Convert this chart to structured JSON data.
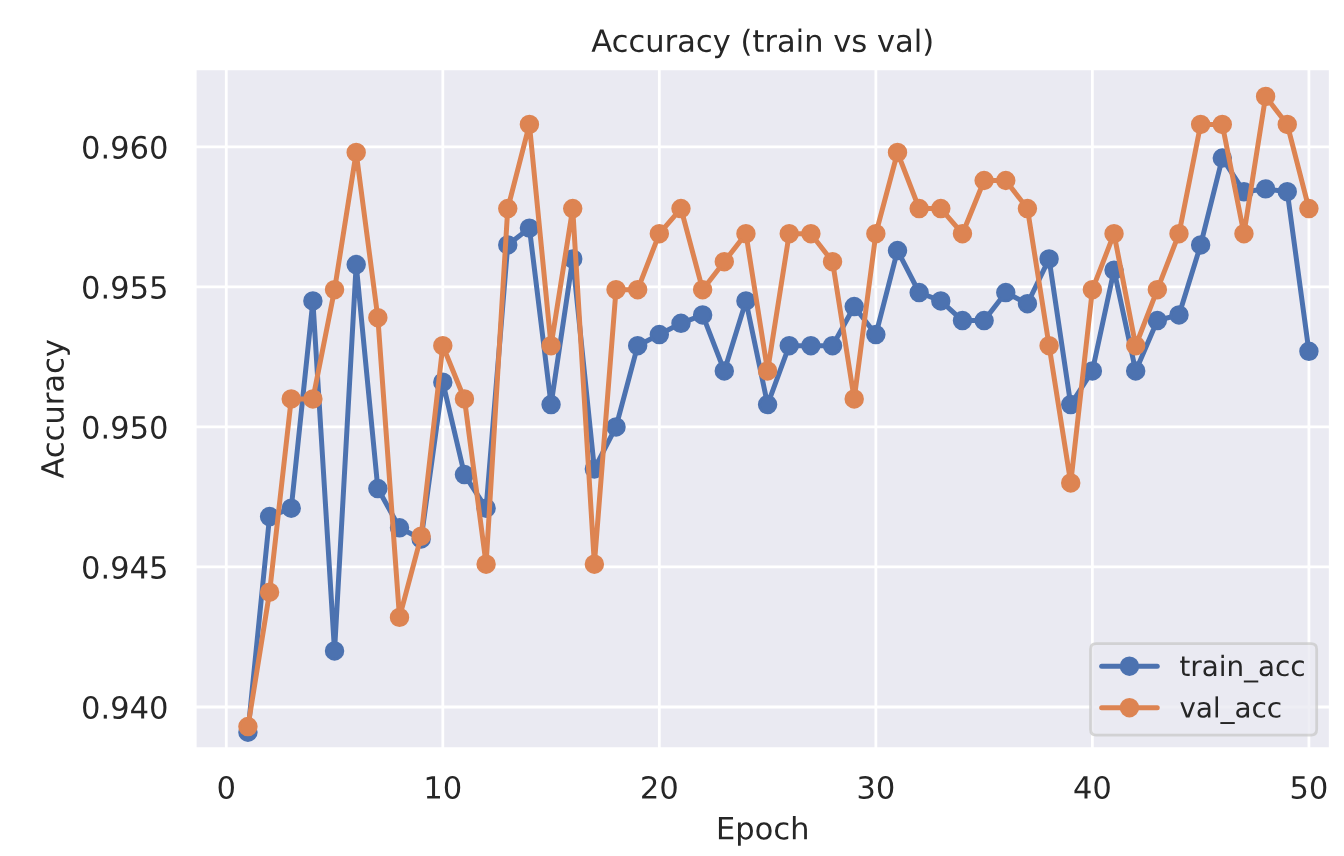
{
  "chart_data": {
    "type": "line",
    "title": "Accuracy (train vs val)",
    "xlabel": "Epoch",
    "ylabel": "Accuracy",
    "x": [
      1,
      2,
      3,
      4,
      5,
      6,
      7,
      8,
      9,
      10,
      11,
      12,
      13,
      14,
      15,
      16,
      17,
      18,
      19,
      20,
      21,
      22,
      23,
      24,
      25,
      26,
      27,
      28,
      29,
      30,
      31,
      32,
      33,
      34,
      35,
      36,
      37,
      38,
      39,
      40,
      41,
      42,
      43,
      44,
      45,
      46,
      47,
      48,
      49,
      50
    ],
    "series": [
      {
        "name": "train_acc",
        "color": "#4c72b0",
        "values": [
          0.9391,
          0.9468,
          0.9471,
          0.9545,
          0.942,
          0.9558,
          0.9478,
          0.9464,
          0.946,
          0.9516,
          0.9483,
          0.9471,
          0.9565,
          0.9571,
          0.9508,
          0.956,
          0.9485,
          0.95,
          0.9529,
          0.9533,
          0.9537,
          0.954,
          0.952,
          0.9545,
          0.9508,
          0.9529,
          0.9529,
          0.9529,
          0.9543,
          0.9533,
          0.9563,
          0.9548,
          0.9545,
          0.9538,
          0.9538,
          0.9548,
          0.9544,
          0.956,
          0.9508,
          0.952,
          0.9556,
          0.952,
          0.9538,
          0.954,
          0.9565,
          0.9596,
          0.9584,
          0.9585,
          0.9584,
          0.9527
        ]
      },
      {
        "name": "val_acc",
        "color": "#dd8452",
        "values": [
          0.9393,
          0.9441,
          0.951,
          0.951,
          0.9549,
          0.9598,
          0.9539,
          0.9432,
          0.9461,
          0.9529,
          0.951,
          0.9451,
          0.9578,
          0.9608,
          0.9529,
          0.9578,
          0.9451,
          0.9549,
          0.9549,
          0.9569,
          0.9578,
          0.9549,
          0.9559,
          0.9569,
          0.952,
          0.9569,
          0.9569,
          0.9559,
          0.951,
          0.9569,
          0.9598,
          0.9578,
          0.9578,
          0.9569,
          0.9588,
          0.9588,
          0.9578,
          0.9529,
          0.948,
          0.9549,
          0.9569,
          0.9529,
          0.9549,
          0.9569,
          0.9608,
          0.9608,
          0.9569,
          0.9618,
          0.9608,
          0.9578
        ]
      }
    ],
    "xlim": [
      -1.45,
      51.0
    ],
    "xticks": [
      0,
      10,
      20,
      30,
      40,
      50
    ],
    "ylim": [
      0.9385,
      0.9628
    ],
    "yticks": [
      {
        "value": 0.94,
        "label": "0.940"
      },
      {
        "value": 0.945,
        "label": "0.945"
      },
      {
        "value": 0.95,
        "label": "0.950"
      },
      {
        "value": 0.955,
        "label": "0.955"
      },
      {
        "value": 0.96,
        "label": "0.960"
      }
    ],
    "grid": true,
    "legend": "lower right",
    "marker": "circle",
    "line_style": "solid"
  }
}
